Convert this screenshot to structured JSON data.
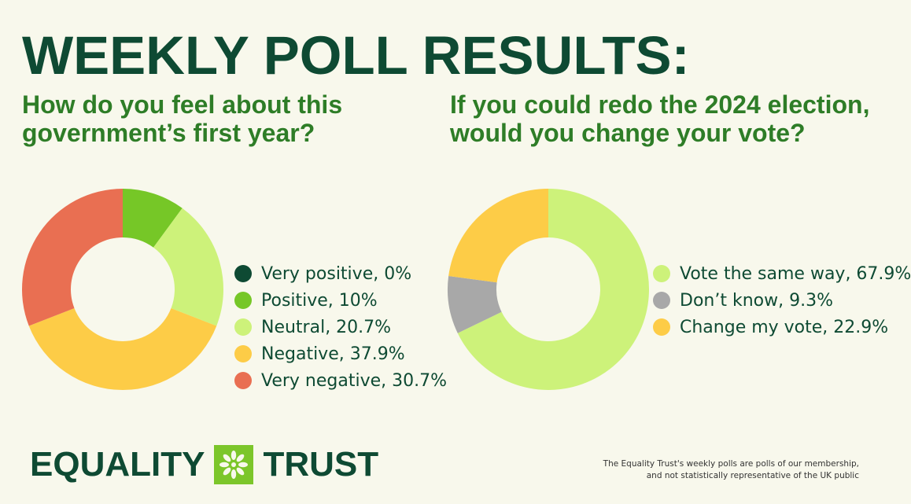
{
  "title": "WEEKLY POLL RESULTS:",
  "chart_data": [
    {
      "type": "pie",
      "title": "How do you feel about this government’s first year?",
      "slices": [
        {
          "label": "Very positive, 0%",
          "value": 0,
          "color": "#0e4a33"
        },
        {
          "label": "Positive, 10%",
          "value": 10,
          "color": "#76c727"
        },
        {
          "label": "Neutral, 20.7%",
          "value": 20.7,
          "color": "#cdf27a"
        },
        {
          "label": "Negative, 37.9%",
          "value": 37.9,
          "color": "#fdcc47"
        },
        {
          "label": "Very negative, 30.7%",
          "value": 30.7,
          "color": "#e96f52"
        }
      ]
    },
    {
      "type": "pie",
      "title": "If you could redo the 2024 election, would you change your vote?",
      "slices": [
        {
          "label": "Vote the same way, 67.9%",
          "value": 67.9,
          "color": "#cdf27a"
        },
        {
          "label": "Don’t know, 9.3%",
          "value": 9.3,
          "color": "#a8a8a8"
        },
        {
          "label": "Change my vote, 22.9%",
          "value": 22.9,
          "color": "#fdcc47"
        }
      ]
    }
  ],
  "logo": {
    "left": "EQUALITY",
    "right": "TRUST",
    "mark": "asterisk-flower-icon"
  },
  "footnote": [
    "The Equality Trust's weekly polls are polls of our membership,",
    "and not statistically representative of the UK public"
  ]
}
